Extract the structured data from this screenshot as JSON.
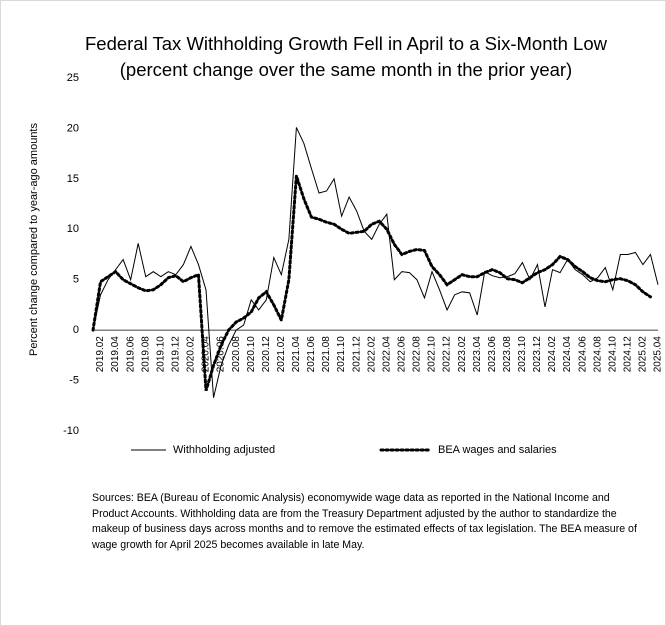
{
  "chart_data": {
    "type": "line",
    "title": "Federal Tax Withholding Growth Fell in April to a Six-Month Low (percent change over the same month in the prior year)",
    "y_label": "Percent change compared to year-ago amounts",
    "note": "Sources:  BEA (Bureau of Economic Analysis) economywide wage data as reported in the National Income and Product Accounts. Withholding data are from the Treasury Department adjusted by the author to standardize the makeup of business days across months and to remove the estimated effects of tax legislation. The BEA measure of wage growth for April 2025 becomes available in late May.",
    "categories": [
      null,
      "2019.02",
      null,
      "2019.04",
      null,
      "2019.06",
      null,
      "2019.08",
      null,
      "2019.10",
      null,
      "2019.12",
      null,
      "2020.02",
      null,
      "2020.04",
      null,
      "2020.06",
      null,
      "2020.08",
      null,
      "2020.10",
      null,
      "2020.12",
      null,
      "2021.02",
      null,
      "2021.04",
      null,
      "2021.06",
      null,
      "2021.08",
      null,
      "2021.10",
      null,
      "2021.12",
      null,
      "2022.02",
      null,
      "2022.04",
      null,
      "2022.06",
      null,
      "2022.08",
      null,
      "2022.10",
      null,
      "2022.12",
      null,
      "2023.02",
      null,
      "2023.04",
      null,
      "2023.06",
      null,
      "2023.08",
      null,
      "2023.10",
      null,
      "2023.12",
      null,
      "2024.02",
      null,
      "2024.04",
      null,
      "2024.06",
      null,
      "2024.08",
      null,
      "2024.10",
      null,
      "2024.12",
      null,
      "2025.02",
      null,
      "2025.04"
    ],
    "series": [
      {
        "name": "Withholding adjusted",
        "color": "#000000",
        "style": "solid",
        "values": [
          0,
          3.5,
          5,
          6,
          7,
          5,
          8.6,
          5.3,
          5.8,
          5.3,
          5.8,
          5.5,
          6.5,
          8.3,
          6.5,
          4,
          -6.7,
          -3.5,
          -1.5,
          0,
          0.5,
          3,
          2,
          3,
          7.2,
          5.5,
          9,
          20.1,
          18.5,
          16,
          13.6,
          13.8,
          15,
          11.3,
          13.2,
          11.8,
          9.8,
          9,
          10.5,
          11.5,
          5,
          5.8,
          5.7,
          5,
          3.2,
          5.8,
          4,
          2,
          3.5,
          3.8,
          3.7,
          1.5,
          5.8,
          5.4,
          5.2,
          5.3,
          5.6,
          6.7,
          5,
          6.5,
          2.3,
          6,
          5.7,
          7,
          6,
          5.5,
          4.8,
          5.2,
          6.2,
          4,
          7.5,
          7.5,
          7.7,
          6.5,
          7.5,
          4.5
        ]
      },
      {
        "name": "BEA wages and salaries",
        "color": "#000000",
        "style": "dotted",
        "values": [
          0,
          4.8,
          5.3,
          5.8,
          5,
          4.6,
          4.2,
          3.9,
          4,
          4.5,
          5.2,
          5.4,
          4.8,
          5.2,
          5.5,
          -6,
          -3.5,
          -1.5,
          0,
          0.8,
          1.2,
          1.8,
          3.2,
          3.8,
          2.5,
          1,
          5,
          15.3,
          13,
          11.2,
          11,
          10.7,
          10.5,
          10,
          9.6,
          9.7,
          9.8,
          10.5,
          10.8,
          10,
          8.5,
          7.5,
          7.8,
          8,
          7.9,
          6.3,
          5.5,
          4.5,
          5,
          5.5,
          5.3,
          5.3,
          5.7,
          6,
          5.7,
          5.1,
          5,
          4.7,
          5.2,
          5.7,
          6,
          6.5,
          7.3,
          7,
          6.3,
          5.8,
          5.2,
          4.9,
          4.8,
          5,
          5.1,
          4.9,
          4.5,
          3.8,
          3.3,
          null
        ]
      }
    ],
    "ylim": [
      -10,
      25
    ],
    "yticks": [
      -10,
      -5,
      0,
      5,
      10,
      15,
      20,
      25
    ],
    "grid": false,
    "legend": "bottom"
  }
}
